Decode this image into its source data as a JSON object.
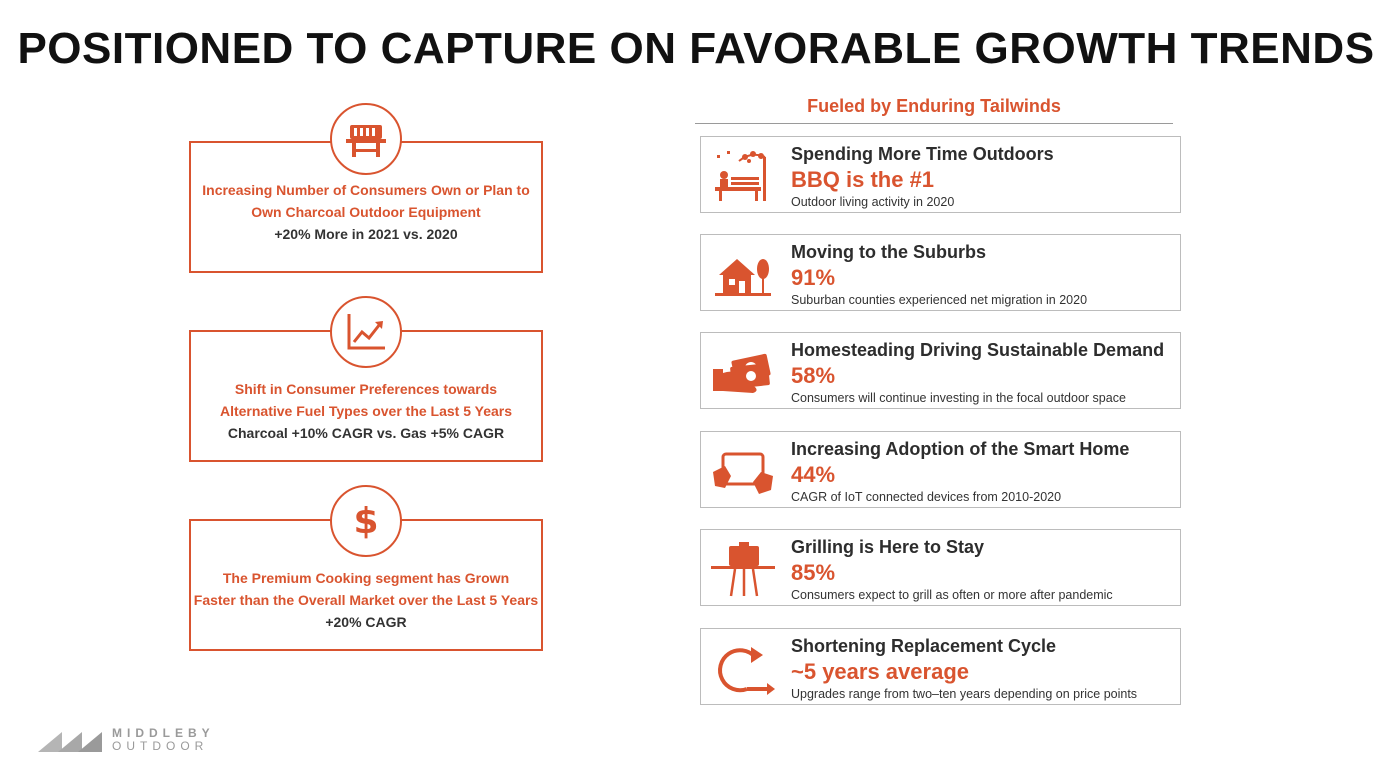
{
  "title": "POSITIONED TO CAPTURE ON FAVORABLE GROWTH TRENDS",
  "colors": {
    "accent": "#d9542f",
    "text_dark": "#333333",
    "border_gray": "#bcbcbc"
  },
  "left_cards": [
    {
      "icon": "grill-icon",
      "line1": "Increasing Number of Consumers Own or Plan to",
      "line2": "Own Charcoal Outdoor Equipment",
      "stat": "+20% More in 2021 vs. 2020"
    },
    {
      "icon": "growth-chart-icon",
      "line1": "Shift in Consumer Preferences towards",
      "line2": "Alternative Fuel Types over the Last 5 Years",
      "stat": "Charcoal +10% CAGR vs. Gas +5% CAGR"
    },
    {
      "icon": "dollar-icon",
      "line1": "The Premium Cooking segment has Grown",
      "line2": "Faster than the Overall Market over the Last 5 Years",
      "stat": "+20% CAGR"
    }
  ],
  "tailwinds": {
    "heading": "Fueled by Enduring Tailwinds",
    "items": [
      {
        "icon": "outdoor-bench-icon",
        "title": "Spending More Time Outdoors",
        "value": "BBQ is the #1",
        "desc": "Outdoor living activity in 2020"
      },
      {
        "icon": "house-icon",
        "title": "Moving to the Suburbs",
        "value": "91%",
        "desc": "Suburban counties experienced net migration in 2020"
      },
      {
        "icon": "money-hand-icon",
        "title": "Homesteading Driving Sustainable Demand",
        "value": "58%",
        "desc": "Consumers will continue investing in the focal outdoor space"
      },
      {
        "icon": "tablet-hands-icon",
        "title": "Increasing Adoption of the Smart Home",
        "value": "44%",
        "desc": "CAGR of IoT connected devices from 2010-2020"
      },
      {
        "icon": "grill-stand-icon",
        "title": "Grilling is Here to Stay",
        "value": "85%",
        "desc": "Consumers expect to grill as often or more after pandemic"
      },
      {
        "icon": "cycle-arrow-icon",
        "title": "Shortening Replacement Cycle",
        "value": "~5 years average",
        "desc": "Upgrades range from two–ten years depending on price points"
      }
    ]
  },
  "logo": {
    "line1": "MIDDLEBY",
    "line2": "OUTDOOR"
  }
}
